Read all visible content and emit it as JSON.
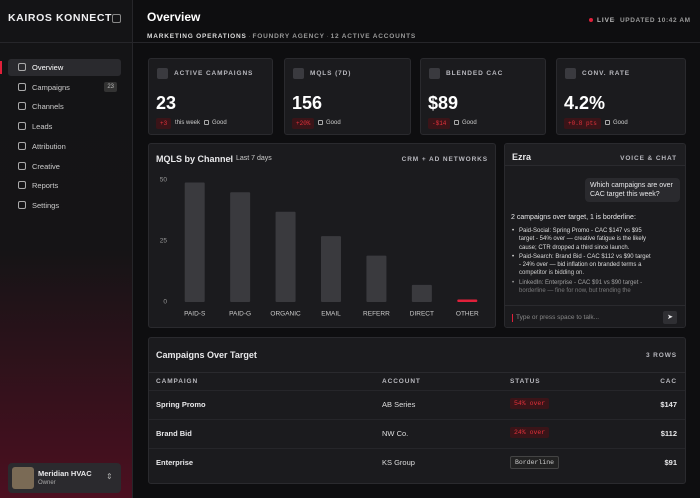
{
  "brand": "KAIROS KONNECT",
  "nav": [
    {
      "label": "Overview"
    },
    {
      "label": "Campaigns",
      "badge": "23"
    },
    {
      "label": "Channels"
    },
    {
      "label": "Leads"
    },
    {
      "label": "Attribution"
    },
    {
      "label": "Creative"
    },
    {
      "label": "Reports"
    },
    {
      "label": "Settings"
    }
  ],
  "account": {
    "name": "Meridian HVAC",
    "role": "Owner"
  },
  "header": {
    "title": "Overview",
    "subtitle_parts": [
      "MARKETING OPERATIONS",
      "FOUNDRY AGENCY",
      "12 ACTIVE ACCOUNTS"
    ],
    "live": "LIVE",
    "updated": "UPDATED 10:42 AM"
  },
  "kpis": [
    {
      "label": "ACTIVE CAMPAIGNS",
      "value": "23",
      "delta": "+3",
      "delta_note": "this week",
      "status": "Good"
    },
    {
      "label": "MQLS (7D)",
      "value": "156",
      "delta": "+20%",
      "status": "Good"
    },
    {
      "label": "BLENDED CAC",
      "value": "$89",
      "delta": "-$14",
      "status": "Good"
    },
    {
      "label": "CONV. RATE",
      "value": "4.2%",
      "delta": "+0.8 pts",
      "status": "Good"
    }
  ],
  "mql_chart": {
    "type": "bar",
    "title": "MQLS by Channel",
    "subtitle": "Last 7 days",
    "tag": "CRM + AD NETWORKS",
    "categories": [
      "PAID-S",
      "PAID-G",
      "ORGANIC",
      "EMAIL",
      "REFERR",
      "DIRECT",
      "OTHER"
    ],
    "values": [
      49,
      45,
      37,
      27,
      19,
      7,
      1
    ],
    "colors": [
      "#3a3a3e",
      "#3a3a3e",
      "#3a3a3e",
      "#3a3a3e",
      "#3a3a3e",
      "#3a3a3e",
      "#e0203a"
    ],
    "ylim": [
      0,
      50
    ],
    "yticks": [
      0,
      25,
      50
    ],
    "grid": false
  },
  "ezra": {
    "title": "Ezra",
    "tag": "VOICE & CHAT",
    "user_message": "Which campaigns are over CAC target this week?",
    "reply_intro": "2 campaigns over target, 1 is borderline:",
    "bullets": [
      "Paid-Social: Spring Promo - CAC $147 vs $95 target - 54% over — creative fatigue is the likely cause; CTR dropped a third since launch.",
      "Paid-Search: Brand Bid - CAC $112 vs $90 target - 24% over — bid inflation on branded terms a competitor is bidding on.",
      "LinkedIn: Enterprise - CAC $91 vs $90 target - borderline — fine for now, but trending the"
    ],
    "input_placeholder": "Type or press space to talk..."
  },
  "table": {
    "title": "Campaigns Over Target",
    "count": "3 ROWS",
    "columns": [
      "CAMPAIGN",
      "ACCOUNT",
      "STATUS",
      "CAC"
    ],
    "rows": [
      [
        "Spring Promo",
        "AB Series",
        "54% over",
        "$147"
      ],
      [
        "Brand Bid",
        "NW Co.",
        "24% over",
        "$112"
      ],
      [
        "Enterprise",
        "KS Group",
        "Borderline",
        "$91"
      ]
    ]
  }
}
